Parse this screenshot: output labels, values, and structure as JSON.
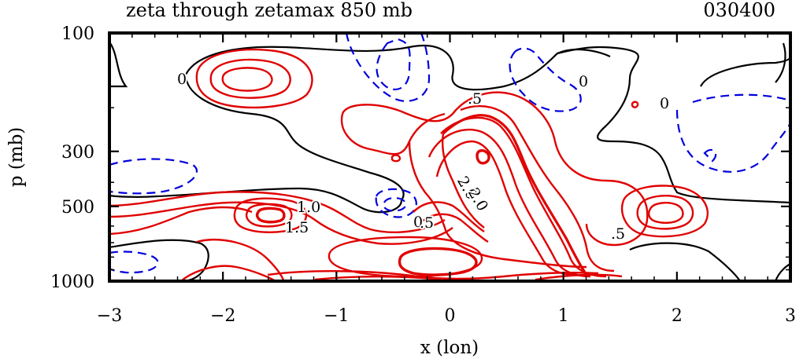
{
  "chart_data": {
    "type": "contour",
    "title": "zeta through zetamax 850 mb",
    "time_label": "030400",
    "xlabel": "x (lon)",
    "ylabel": "p (mb)",
    "xlim": [
      -3,
      3
    ],
    "xticks": [
      "-3",
      "-2",
      "-1",
      "0",
      "1",
      "2",
      "3"
    ],
    "y_axis_scale": "log",
    "ylim": [
      1000,
      100
    ],
    "yticks": [
      "100",
      "300",
      "500",
      "1000"
    ],
    "colors": {
      "positive": "#e00000",
      "negative": "#0000dd",
      "zero": "#000000"
    },
    "contour_labels": [
      "0",
      "0",
      "0",
      "0",
      ".5",
      ".5",
      ".5",
      "1.0",
      "1.5",
      "2.0",
      "2.0"
    ],
    "grid": false
  }
}
